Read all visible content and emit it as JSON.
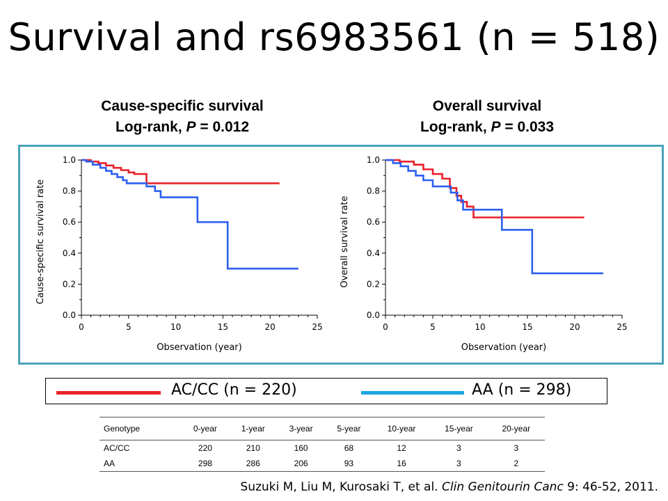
{
  "slide": {
    "title": "Survival and rs6983561  (n = 518)"
  },
  "panels": [
    {
      "caption_line1": "Cause-specific survival",
      "caption_prefix": "Log-rank, ",
      "caption_p": "P",
      "caption_value": " = 0.012"
    },
    {
      "caption_line1": "Overall survival",
      "caption_prefix": "Log-rank, ",
      "caption_p": "P",
      "caption_value": " = 0.033"
    }
  ],
  "legend": {
    "items": [
      {
        "label": "AC/CC (n = 220)",
        "color": "#e8242a"
      },
      {
        "label": "AA (n = 298)",
        "color": "#19a5e3"
      }
    ]
  },
  "chart_data": [
    {
      "type": "line",
      "step": true,
      "ylabel": "Cause-specific survival rate",
      "xlabel": "Observation (year)",
      "xlim": [
        0,
        25
      ],
      "ylim": [
        0,
        1.0
      ],
      "xticks": [
        0,
        5,
        10,
        15,
        20,
        25
      ],
      "yticks": [
        "0.0",
        "0.2",
        "0.4",
        "0.6",
        "0.8",
        "1.0"
      ],
      "series": [
        {
          "color": "#e8202a",
          "x": [
            0,
            1.0,
            1.8,
            2.6,
            3.4,
            4.2,
            5.0,
            5.6,
            6.9,
            21.0
          ],
          "y": [
            1.0,
            0.99,
            0.98,
            0.965,
            0.95,
            0.935,
            0.92,
            0.91,
            0.85,
            0.85
          ]
        },
        {
          "color": "#2c5ff0",
          "x": [
            0,
            0.5,
            1.2,
            2.0,
            2.6,
            3.2,
            3.8,
            4.4,
            4.8,
            6.9,
            7.8,
            8.4,
            12.3,
            15.5,
            23.0
          ],
          "y": [
            1.0,
            0.99,
            0.97,
            0.95,
            0.93,
            0.91,
            0.89,
            0.87,
            0.85,
            0.83,
            0.8,
            0.76,
            0.6,
            0.3,
            0.3
          ]
        }
      ]
    },
    {
      "type": "line",
      "step": true,
      "ylabel": "Overall survival rate",
      "xlabel": "Observation (year)",
      "xlim": [
        0,
        25
      ],
      "ylim": [
        0,
        1.0
      ],
      "xticks": [
        0,
        5,
        10,
        15,
        20,
        25
      ],
      "yticks": [
        "0.0",
        "0.2",
        "0.4",
        "0.6",
        "0.8",
        "1.0"
      ],
      "series": [
        {
          "color": "#e8202a",
          "x": [
            0,
            1.5,
            3.0,
            4.0,
            5.0,
            6.0,
            6.8,
            7.5,
            8.0,
            8.6,
            9.3,
            21.0
          ],
          "y": [
            1.0,
            0.99,
            0.97,
            0.94,
            0.91,
            0.88,
            0.82,
            0.77,
            0.73,
            0.7,
            0.63,
            0.63
          ]
        },
        {
          "color": "#2c5ff0",
          "x": [
            0,
            0.8,
            1.6,
            2.4,
            3.2,
            4.0,
            5.0,
            6.9,
            7.6,
            8.2,
            12.3,
            15.5,
            23.0
          ],
          "y": [
            1.0,
            0.98,
            0.96,
            0.93,
            0.9,
            0.87,
            0.83,
            0.79,
            0.74,
            0.68,
            0.55,
            0.27,
            0.27
          ]
        }
      ]
    }
  ],
  "risk_table": {
    "headers": [
      "Genotype",
      "0-year",
      "1-year",
      "3-year",
      "5-year",
      "10-year",
      "15-year",
      "20-year"
    ],
    "rows": [
      [
        "AC/CC",
        "220",
        "210",
        "160",
        "68",
        "12",
        "3",
        "3"
      ],
      [
        "AA",
        "298",
        "286",
        "206",
        "93",
        "16",
        "3",
        "2"
      ]
    ]
  },
  "citation": {
    "authors": "Suzuki M, Liu M, Kurosaki T, et al. ",
    "journal": "Clin Genitourin Canc",
    "rest": "  9: 46-52, 2011."
  }
}
